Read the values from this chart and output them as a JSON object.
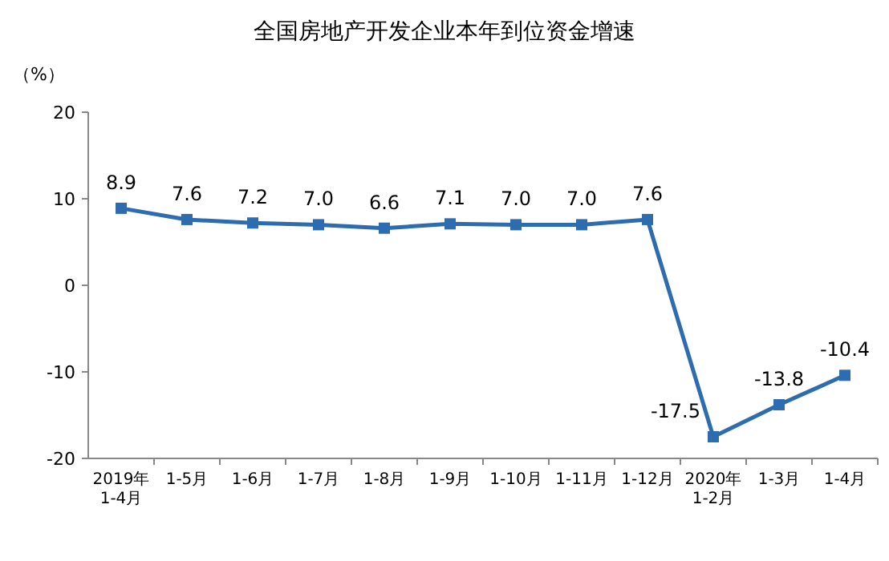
{
  "chart_data": {
    "type": "line",
    "title": "全国房地产开发企业本年到位资金增速",
    "ylabel": "（%）",
    "categories": [
      "2019年\n1-4月",
      "1-5月",
      "1-6月",
      "1-7月",
      "1-8月",
      "1-9月",
      "1-10月",
      "1-11月",
      "1-12月",
      "2020年\n1-2月",
      "1-3月",
      "1-4月"
    ],
    "series": [
      {
        "color": "#2e6cb0",
        "values": [
          8.9,
          7.6,
          7.2,
          7.0,
          6.6,
          7.1,
          7.0,
          7.0,
          7.6,
          -17.5,
          -13.8,
          -10.4
        ],
        "value_labels": [
          "8.9",
          "7.6",
          "7.2",
          "7.0",
          "6.6",
          "7.1",
          "7.0",
          "7.0",
          "7.6",
          "-17.5",
          "-13.8",
          "-10.4"
        ]
      }
    ],
    "ylim": [
      -20,
      20
    ],
    "yticks": [
      -20,
      -10,
      0,
      10,
      20
    ],
    "marker": "square",
    "line_style": "solid",
    "grid": false
  }
}
